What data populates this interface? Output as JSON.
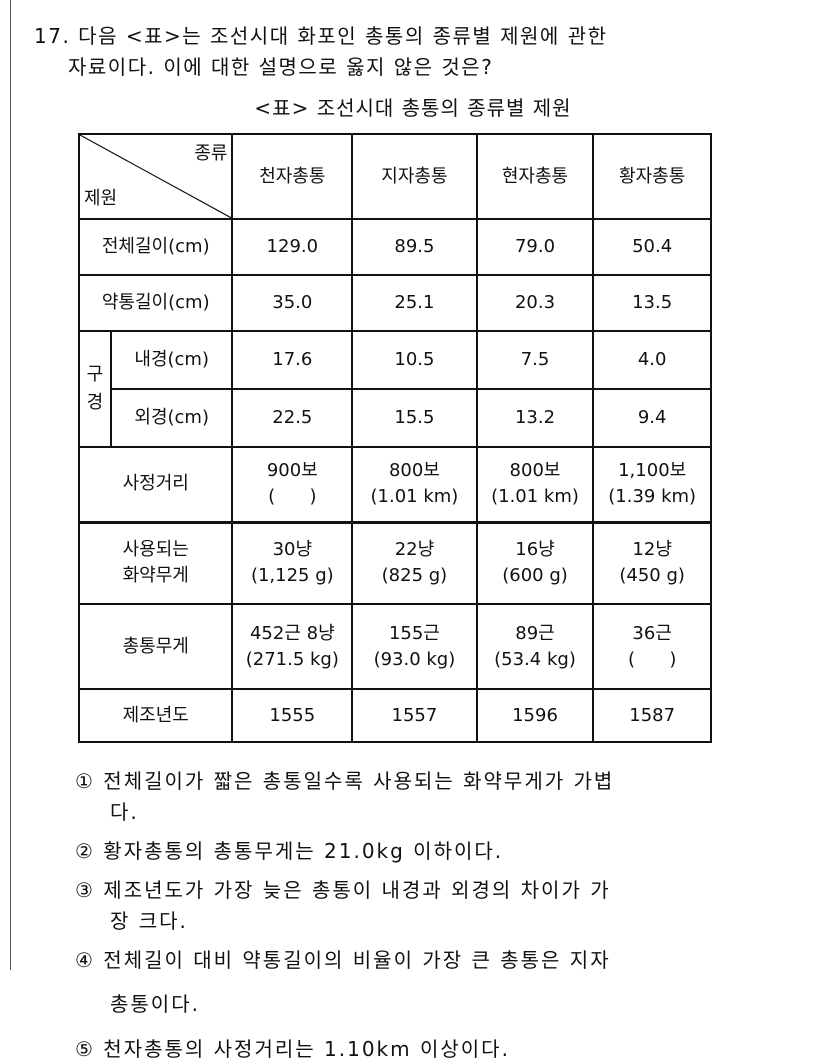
{
  "question": {
    "number": "17.",
    "line1": "다음 <표>는 조선시대 화포인 총통의 종류별 제원에 관한",
    "line2": "자료이다. 이에 대한 설명으로 옳지 않은 것은?"
  },
  "table": {
    "caption": "<표> 조선시대 총통의 종류별 제원",
    "corner_top": "종류",
    "corner_bottom": "제원",
    "columns": [
      "천자총통",
      "지자총통",
      "현자총통",
      "황자총통"
    ],
    "group_label": "구경",
    "rows": [
      {
        "label": "전체길이(cm)",
        "values": [
          "129.0",
          "89.5",
          "79.0",
          "50.4"
        ]
      },
      {
        "label": "약통길이(cm)",
        "values": [
          "35.0",
          "25.1",
          "20.3",
          "13.5"
        ]
      },
      {
        "label": "내경(cm)",
        "values": [
          "17.6",
          "10.5",
          "7.5",
          "4.0"
        ]
      },
      {
        "label": "외경(cm)",
        "values": [
          "22.5",
          "15.5",
          "13.2",
          "9.4"
        ]
      },
      {
        "label": "사정거리",
        "values": [
          [
            "900보",
            "(      )"
          ],
          [
            "800보",
            "(1.01 km)"
          ],
          [
            "800보",
            "(1.01 km)"
          ],
          [
            "1,100보",
            "(1.39 km)"
          ]
        ]
      },
      {
        "label": [
          "사용되는",
          "화약무게"
        ],
        "values": [
          [
            "30냥",
            "(1,125 g)"
          ],
          [
            "22냥",
            "(825 g)"
          ],
          [
            "16냥",
            "(600 g)"
          ],
          [
            "12냥",
            "(450 g)"
          ]
        ]
      },
      {
        "label": "총통무게",
        "values": [
          [
            "452근 8냥",
            "(271.5 kg)"
          ],
          [
            "155근",
            "(93.0 kg)"
          ],
          [
            "89근",
            "(53.4 kg)"
          ],
          [
            "36근",
            "(      )"
          ]
        ]
      },
      {
        "label": "제조년도",
        "values": [
          "1555",
          "1557",
          "1596",
          "1587"
        ]
      }
    ]
  },
  "options": [
    {
      "mark": "①",
      "line1": "전체길이가 짧은 총통일수록 사용되는 화약무게가 가볍",
      "line2": "다."
    },
    {
      "mark": "②",
      "line1": "황자총통의 총통무게는 21.0kg 이하이다."
    },
    {
      "mark": "③",
      "line1": "제조년도가 가장 늦은 총통이 내경과 외경의 차이가 가",
      "line2": "장 크다."
    },
    {
      "mark": "④",
      "line1": "전체길이 대비 약통길이의 비율이 가장 큰 총통은 지자",
      "line2": "총통이다."
    },
    {
      "mark": "⑤",
      "line1": "천자총통의 사정거리는 1.10km 이상이다."
    }
  ]
}
